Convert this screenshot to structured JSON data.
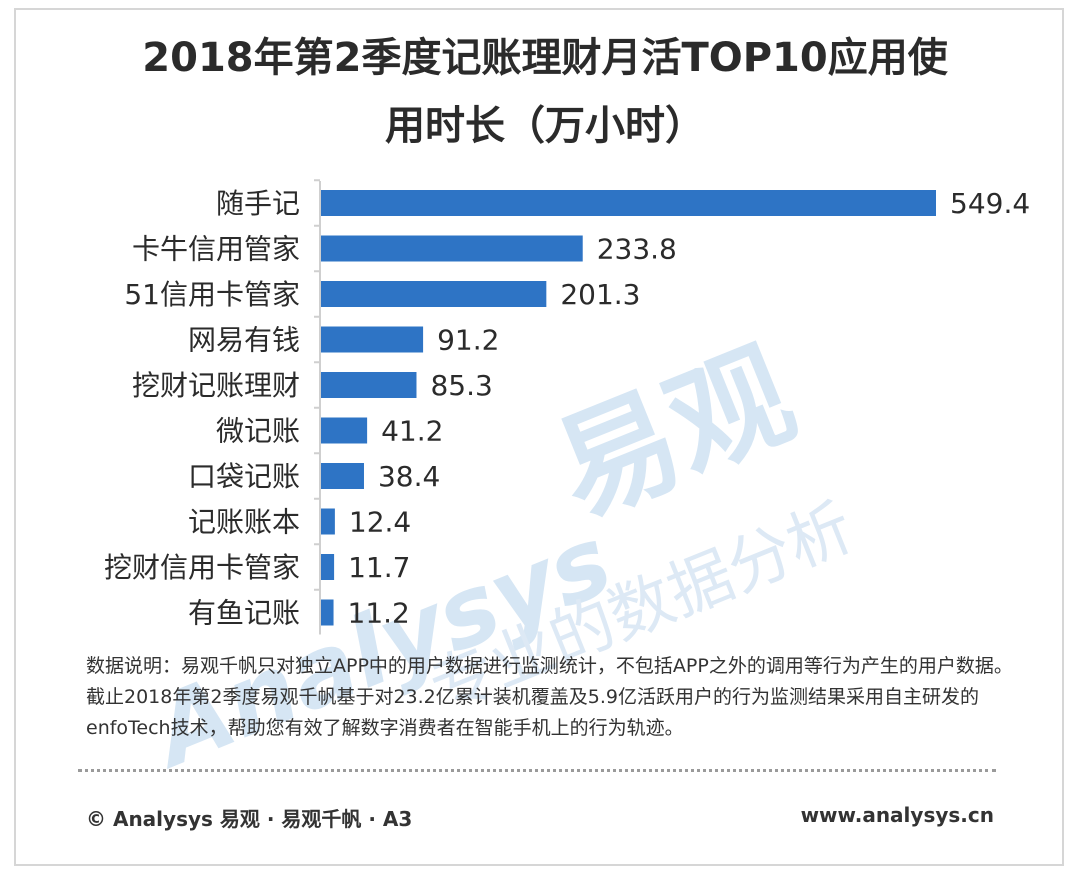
{
  "chart_data": {
    "type": "bar",
    "orientation": "horizontal",
    "title_line1": "2018年第2季度记账理财月活TOP10应用使",
    "title_line2": "用时长（万小时）",
    "categories": [
      "随手记",
      "卡牛信用管家",
      "51信用卡管家",
      "网易有钱",
      "挖财记账理财",
      "微记账",
      "口袋记账",
      "记账账本",
      "挖财信用卡管家",
      "有鱼记账"
    ],
    "values": [
      549.4,
      233.8,
      201.3,
      91.2,
      85.3,
      41.2,
      38.4,
      12.4,
      11.7,
      11.2
    ],
    "value_labels": [
      "549.4",
      "233.8",
      "201.3",
      "91.2",
      "85.3",
      "41.2",
      "38.4",
      "12.4",
      "11.7",
      "11.2"
    ],
    "xlim": [
      0,
      549.4
    ],
    "bar_color": "#2e74c5",
    "legend": "none",
    "grid": false
  },
  "watermark": {
    "brand_cn": "易观",
    "brand_en": "Analysys",
    "slogan": "专业的数据分析",
    "color": "#d6e6f4"
  },
  "note": "数据说明：易观千帆只对独立APP中的用户数据进行监测统计，不包括APP之外的调用等行为产生的用户数据。截止2018年第2季度易观千帆基于对23.2亿累计装机覆盖及5.9亿活跃用户的行为监测结果采用自主研发的enfoTech技术，帮助您有效了解数字消费者在智能手机上的行为轨迹。",
  "footer": {
    "left": "© Analysys 易观 · 易观千帆 · A3",
    "right": "www.analysys.cn"
  }
}
